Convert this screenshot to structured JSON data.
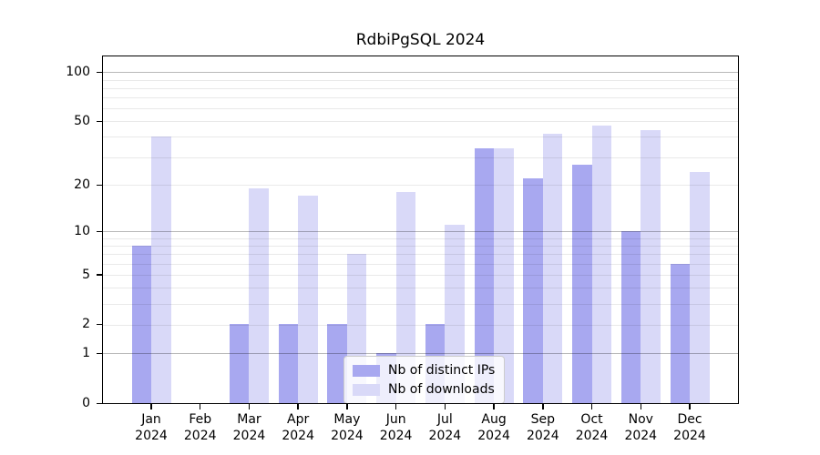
{
  "title": "RdbiPgSQL 2024",
  "chart_data": {
    "type": "bar",
    "title": "RdbiPgSQL 2024",
    "months": [
      "Jan",
      "Feb",
      "Mar",
      "Apr",
      "May",
      "Jun",
      "Jul",
      "Aug",
      "Sep",
      "Oct",
      "Nov",
      "Dec"
    ],
    "year_label": "2024",
    "series": [
      {
        "name": "Nb of distinct IPs",
        "color": "#a8a8f0",
        "values": [
          8,
          0,
          2,
          2,
          2,
          1,
          2,
          34,
          22,
          27,
          10,
          6
        ]
      },
      {
        "name": "Nb of downloads",
        "color": "#d9d9f8",
        "values": [
          40,
          0,
          19,
          17,
          7,
          18,
          11,
          34,
          42,
          47,
          44,
          24
        ]
      }
    ],
    "y_axis": {
      "scale": "log1p",
      "tick_labels": [
        0,
        1,
        2,
        5,
        10,
        20,
        50,
        100
      ],
      "major_gridlines": [
        1,
        10,
        100
      ],
      "minor_gridlines": [
        2,
        3,
        4,
        5,
        6,
        7,
        8,
        9,
        20,
        30,
        40,
        50,
        60,
        70,
        80,
        90
      ],
      "ylim": [
        0,
        125
      ]
    },
    "legend": {
      "position": "lower center",
      "entries": [
        "Nb of distinct IPs",
        "Nb of downloads"
      ]
    },
    "grid": "on",
    "xlabel": "",
    "ylabel": ""
  }
}
